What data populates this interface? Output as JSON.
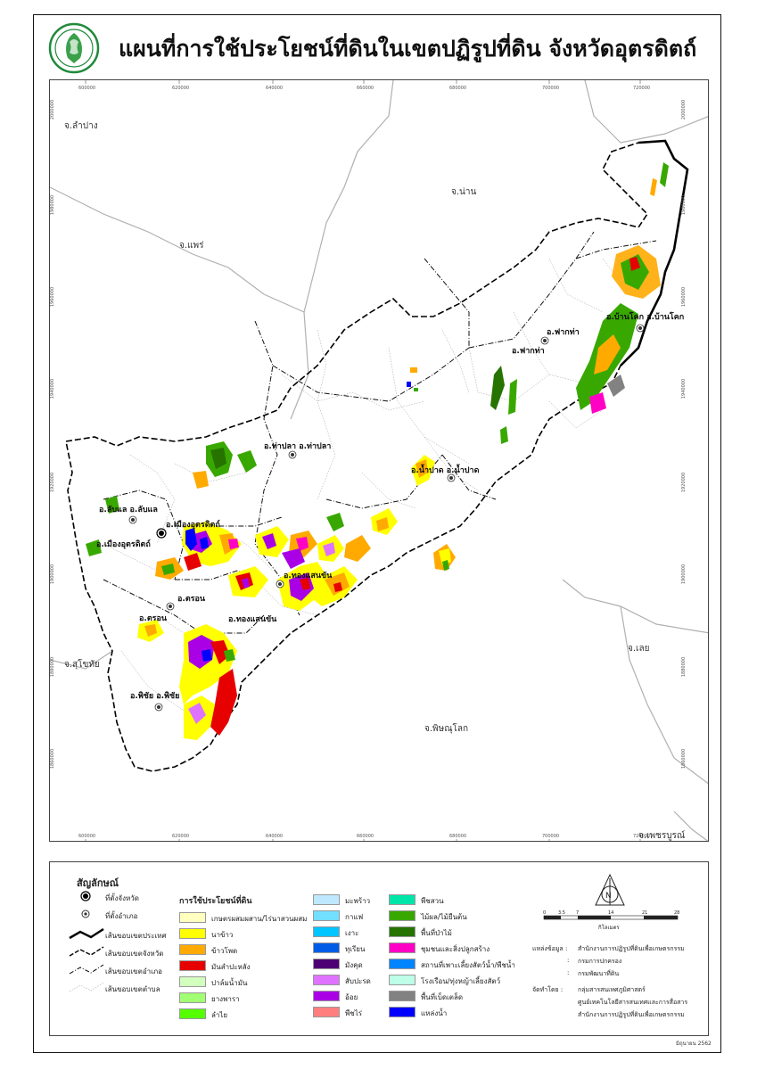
{
  "title": "แผนที่การใช้ประโยชน์ที่ดินในเขตปฏิรูปที่ดิน จังหวัดอุตรดิตถ์",
  "map": {
    "provinces": [
      "จ.ลำปาง",
      "จ.น่าน",
      "จ.แพร่",
      "จ.สุโขทัย",
      "จ.พิษณุโลก",
      "จ.เลย",
      "จ.เพชรบูรณ์"
    ],
    "districts": [
      "อ.ฟากท่า",
      "อ.บ้านโคก",
      "อ.น้ำปาด",
      "อ.ท่าปลา",
      "อ.ลับแล",
      "อ.เมืองอุตรดิตถ์",
      "อ.ตรอน",
      "อ.ทองแสนขัน",
      "อ.พิชัย"
    ],
    "districts_doubled": [
      "อ.บ้านโคก อ.บ้านโคก",
      "อ.ฟากท่า",
      "อ.ท่าปลา อ.ท่าปลา",
      "อ.น้ำปาด อ.น้ำปาด",
      "อ.ลับแล อ.ลับแล",
      "อ.เมืองอุตรดิตถ์",
      "อ.เมืองอุตรดิตถ์",
      "อ.ตรอน",
      "อ.ตรอน",
      "อ.ทองแสนขัน",
      "อ.ทองแสนขัน",
      "อ.พิชัย อ.พิชัย"
    ],
    "x_ticks": [
      "600000",
      "620000",
      "640000",
      "660000",
      "680000",
      "700000",
      "720000"
    ],
    "y_ticks": [
      "2000000",
      "1980000",
      "1960000",
      "1940000",
      "1920000",
      "1900000",
      "1880000",
      "1860000",
      "1840000"
    ]
  },
  "legend": {
    "title": "สัญลักษณ์",
    "symbols": [
      "ที่ตั้งจังหวัด",
      "ที่ตั้งอำเภอ",
      "เส้นขอบเขตประเทศ",
      "เส้นขอบเขตจังหวัด",
      "เส้นขอบเขตอำเภอ",
      "เส้นขอบเขตตำบล"
    ],
    "landuse_title": "การใช้ประโยชน์ที่ดิน",
    "landuse": [
      {
        "label": "เกษตรผสมผสาน/ไร่นาสวนผสม",
        "color": "#FFFFC0"
      },
      {
        "label": "นาข้าว",
        "color": "#FFFF00"
      },
      {
        "label": "ข้าวโพด",
        "color": "#FFAA00"
      },
      {
        "label": "มันสำปะหลัง",
        "color": "#E60000"
      },
      {
        "label": "ปาล์มน้ำมัน",
        "color": "#D3FFBE"
      },
      {
        "label": "ยางพารา",
        "color": "#A3FF73"
      },
      {
        "label": "ลำไย",
        "color": "#55FF00"
      },
      {
        "label": "มะพร้าว",
        "color": "#BEE8FF"
      },
      {
        "label": "กาแฟ",
        "color": "#73DFFF"
      },
      {
        "label": "เงาะ",
        "color": "#00C5FF"
      },
      {
        "label": "ทุเรียน",
        "color": "#005CE6"
      },
      {
        "label": "มังคุด",
        "color": "#4C0073"
      },
      {
        "label": "สับปะรด",
        "color": "#DF73FF"
      },
      {
        "label": "อ้อย",
        "color": "#A900E6"
      },
      {
        "label": "พืชไร่",
        "color": "#FF7F7F"
      },
      {
        "label": "พืชสวน",
        "color": "#00E6A9"
      },
      {
        "label": "ไม้ผล/ไม้ยืนต้น",
        "color": "#38A800"
      },
      {
        "label": "พื้นที่ป่าไม้",
        "color": "#267300"
      },
      {
        "label": "ชุมชนและสิ่งปลูกสร้าง",
        "color": "#FF00C5"
      },
      {
        "label": "สถานที่เพาะเลี้ยงสัตว์น้ำ/พืชน้ำ",
        "color": "#0084FF"
      },
      {
        "label": "โรงเรือน/ทุ่งหญ้าเลี้ยงสัตว์",
        "color": "#BEFFE8"
      },
      {
        "label": "พื้นที่เบ็ดเตล็ด",
        "color": "#828282"
      },
      {
        "label": "แหล่งน้ำ",
        "color": "#0000FF"
      }
    ],
    "scale_unit": "กิโลเมตร",
    "scale_ticks": [
      "0",
      "3.5",
      "7",
      "14",
      "21",
      "28"
    ],
    "source_label": "แหล่งข้อมูล :",
    "sources": [
      "สำนักงานการปฏิรูปที่ดินเพื่อเกษตรกรรม",
      "กรมการปกครอง",
      "กรมพัฒนาที่ดิน"
    ],
    "producer_label": "จัดทำโดย :",
    "producers": [
      "กลุ่มสารสนเทศภูมิศาสตร์",
      "ศูนย์เทคโนโลยีสารสนเทศและการสื่อสาร",
      "สำนักงานการปฏิรูปที่ดินเพื่อเกษตรกรรม"
    ],
    "date": "มิถุนายน 2562"
  },
  "colors": {
    "boundary": "#000000",
    "province_line": "#aaaaaa",
    "tambon": "#9a9a9a"
  }
}
